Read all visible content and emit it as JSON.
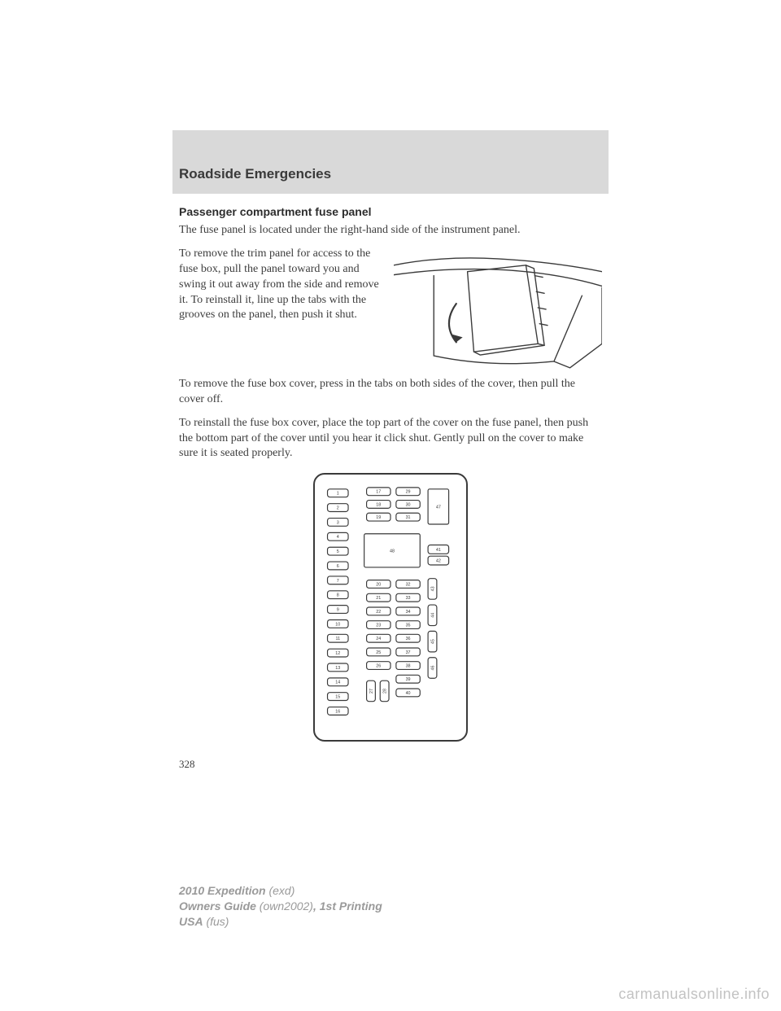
{
  "header": {
    "section_title": "Roadside Emergencies"
  },
  "content": {
    "subheading": "Passenger compartment fuse panel",
    "p1": "The fuse panel is located under the right-hand side of the instrument panel.",
    "p2": "To remove the trim panel for access to the fuse box, pull the panel toward you and swing it out away from the side and remove it. To reinstall it, line up the tabs with the grooves on the panel, then push it shut.",
    "p3": "To remove the fuse box cover, press in the tabs on both sides of the cover, then pull the cover off.",
    "p4": "To reinstall the fuse box cover, place the top part of the cover on the fuse panel, then push the bottom part of the cover until you hear it click shut. Gently pull on the cover to make sure it is seated properly."
  },
  "fuse_diagram": {
    "type": "schematic",
    "stroke_color": "#3a3a3a",
    "bg_color": "#ffffff",
    "label_fontsize": 5.5,
    "left_column": [
      "1",
      "2",
      "3",
      "4",
      "5",
      "6",
      "7",
      "8",
      "9",
      "10",
      "11",
      "12",
      "13",
      "14",
      "15",
      "16"
    ],
    "mid_top": [
      "17",
      "18",
      "19"
    ],
    "mid_bottom": [
      "20",
      "21",
      "22",
      "23",
      "24",
      "25",
      "26"
    ],
    "mid_tiny": [
      "27",
      "28"
    ],
    "right_top": [
      "29",
      "30",
      "31"
    ],
    "right_bottom": [
      "32",
      "33",
      "34",
      "35",
      "36",
      "37",
      "38",
      "39",
      "40"
    ],
    "tall_right": [
      "47",
      "41",
      "42",
      "43",
      "44",
      "45",
      "46"
    ],
    "big": "48"
  },
  "page_number": "328",
  "footer": {
    "line1a": "2010 Expedition",
    "line1b": " (exd)",
    "line2a": "Owners Guide",
    "line2b": " (own2002)",
    "line2c": ", 1st Printing",
    "line3a": "USA",
    "line3b": " (fus)"
  },
  "watermark": "carmanualsonline.info"
}
